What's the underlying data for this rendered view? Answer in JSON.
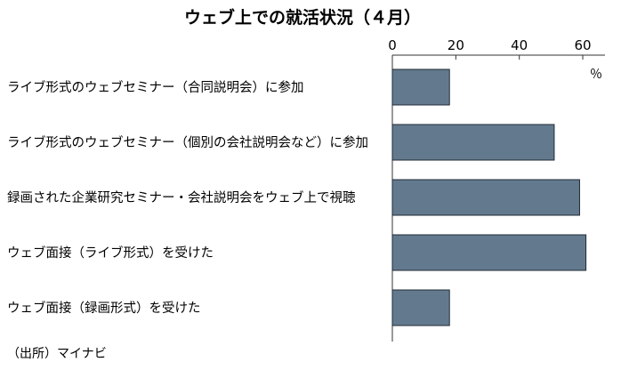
{
  "chart_data": {
    "type": "bar",
    "orientation": "horizontal",
    "title": "ウェブ上での就活状況（４月）",
    "categories": [
      "ライブ形式のウェブセミナー（合同説明会）に参加",
      "ライブ形式のウェブセミナー（個別の会社説明会など）に参加",
      "録画された企業研究セミナー・会社説明会をウェブ上で視聴",
      "ウェブ面接（ライブ形式）を受けた",
      "ウェブ面接（録画形式）を受けた"
    ],
    "values": [
      18,
      51,
      59,
      61,
      18
    ],
    "xlim": [
      0,
      67
    ],
    "xticks": [
      "0",
      "20",
      "40",
      "60"
    ],
    "tick_values": [
      0,
      20,
      40,
      60
    ],
    "unit": "％",
    "source": "（出所）マイナビ",
    "bar_color": "#637a8e",
    "bar_stroke": "#1f2a35"
  }
}
